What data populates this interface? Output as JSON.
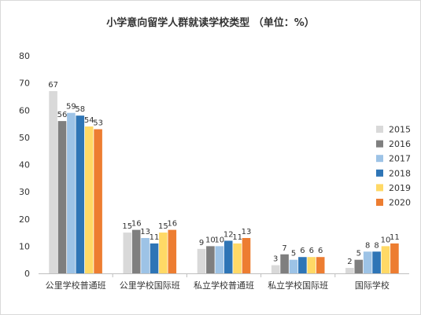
{
  "chart_data": {
    "type": "bar",
    "title": "小学意向留学人群就读学校类型 （单位：%）",
    "categories": [
      "公里学校普通班",
      "公里学校国际班",
      "私立学校普通班",
      "私立学校国际班",
      "国际学校"
    ],
    "series": [
      {
        "name": "2015",
        "color": "#d9d9d9",
        "values": [
          67,
          15,
          9,
          3,
          2
        ]
      },
      {
        "name": "2016",
        "color": "#7f7f7f",
        "values": [
          56,
          16,
          10,
          7,
          5
        ]
      },
      {
        "name": "2017",
        "color": "#9dc3e6",
        "values": [
          59,
          13,
          10,
          5,
          8
        ]
      },
      {
        "name": "2018",
        "color": "#2e75b6",
        "values": [
          58,
          11,
          12,
          6,
          8
        ]
      },
      {
        "name": "2019",
        "color": "#ffd966",
        "values": [
          54,
          15,
          11,
          6,
          10
        ]
      },
      {
        "name": "2020",
        "color": "#ed7d31",
        "values": [
          53,
          16,
          13,
          6,
          11
        ]
      }
    ],
    "ylim": [
      0,
      80
    ],
    "yticks": [
      0,
      10,
      20,
      30,
      40,
      50,
      60,
      70,
      80
    ],
    "grid": false,
    "legend": "right"
  }
}
